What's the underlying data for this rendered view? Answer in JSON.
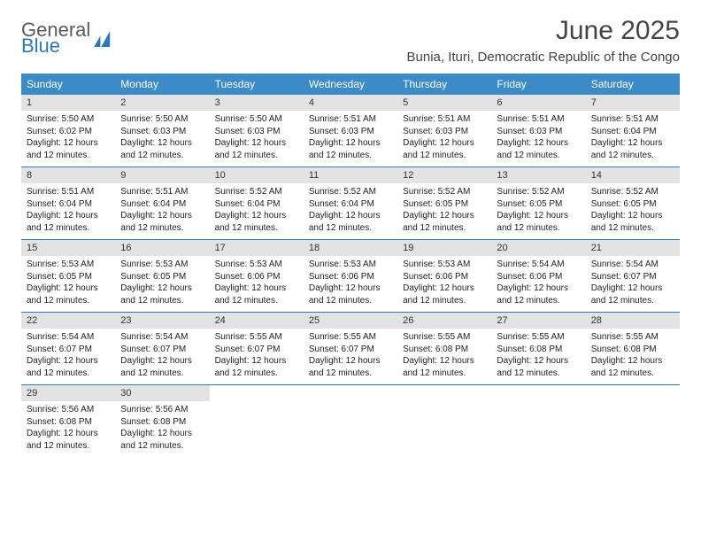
{
  "brand": {
    "line1": "General",
    "line2": "Blue",
    "line1_color": "#5a5a5a",
    "line2_color": "#2f78b7",
    "mark_color": "#2f78b7"
  },
  "header": {
    "title": "June 2025",
    "location": "Bunia, Ituri, Democratic Republic of the Congo",
    "title_fontsize": 30,
    "title_color": "#444444"
  },
  "styling": {
    "header_row_bg": "#3b8bc8",
    "header_row_text": "#ffffff",
    "daynum_bg": "#e3e3e3",
    "week_divider": "#2f78b7",
    "body_text_color": "#222222",
    "body_fontsize": 10,
    "page_bg": "#ffffff"
  },
  "day_labels": [
    "Sunday",
    "Monday",
    "Tuesday",
    "Wednesday",
    "Thursday",
    "Friday",
    "Saturday"
  ],
  "labels": {
    "sunrise": "Sunrise:",
    "sunset": "Sunset:",
    "daylight": "Daylight:"
  },
  "weeks": [
    [
      {
        "n": "1",
        "sr": "5:50 AM",
        "ss": "6:02 PM",
        "dl": "12 hours and 12 minutes."
      },
      {
        "n": "2",
        "sr": "5:50 AM",
        "ss": "6:03 PM",
        "dl": "12 hours and 12 minutes."
      },
      {
        "n": "3",
        "sr": "5:50 AM",
        "ss": "6:03 PM",
        "dl": "12 hours and 12 minutes."
      },
      {
        "n": "4",
        "sr": "5:51 AM",
        "ss": "6:03 PM",
        "dl": "12 hours and 12 minutes."
      },
      {
        "n": "5",
        "sr": "5:51 AM",
        "ss": "6:03 PM",
        "dl": "12 hours and 12 minutes."
      },
      {
        "n": "6",
        "sr": "5:51 AM",
        "ss": "6:03 PM",
        "dl": "12 hours and 12 minutes."
      },
      {
        "n": "7",
        "sr": "5:51 AM",
        "ss": "6:04 PM",
        "dl": "12 hours and 12 minutes."
      }
    ],
    [
      {
        "n": "8",
        "sr": "5:51 AM",
        "ss": "6:04 PM",
        "dl": "12 hours and 12 minutes."
      },
      {
        "n": "9",
        "sr": "5:51 AM",
        "ss": "6:04 PM",
        "dl": "12 hours and 12 minutes."
      },
      {
        "n": "10",
        "sr": "5:52 AM",
        "ss": "6:04 PM",
        "dl": "12 hours and 12 minutes."
      },
      {
        "n": "11",
        "sr": "5:52 AM",
        "ss": "6:04 PM",
        "dl": "12 hours and 12 minutes."
      },
      {
        "n": "12",
        "sr": "5:52 AM",
        "ss": "6:05 PM",
        "dl": "12 hours and 12 minutes."
      },
      {
        "n": "13",
        "sr": "5:52 AM",
        "ss": "6:05 PM",
        "dl": "12 hours and 12 minutes."
      },
      {
        "n": "14",
        "sr": "5:52 AM",
        "ss": "6:05 PM",
        "dl": "12 hours and 12 minutes."
      }
    ],
    [
      {
        "n": "15",
        "sr": "5:53 AM",
        "ss": "6:05 PM",
        "dl": "12 hours and 12 minutes."
      },
      {
        "n": "16",
        "sr": "5:53 AM",
        "ss": "6:05 PM",
        "dl": "12 hours and 12 minutes."
      },
      {
        "n": "17",
        "sr": "5:53 AM",
        "ss": "6:06 PM",
        "dl": "12 hours and 12 minutes."
      },
      {
        "n": "18",
        "sr": "5:53 AM",
        "ss": "6:06 PM",
        "dl": "12 hours and 12 minutes."
      },
      {
        "n": "19",
        "sr": "5:53 AM",
        "ss": "6:06 PM",
        "dl": "12 hours and 12 minutes."
      },
      {
        "n": "20",
        "sr": "5:54 AM",
        "ss": "6:06 PM",
        "dl": "12 hours and 12 minutes."
      },
      {
        "n": "21",
        "sr": "5:54 AM",
        "ss": "6:07 PM",
        "dl": "12 hours and 12 minutes."
      }
    ],
    [
      {
        "n": "22",
        "sr": "5:54 AM",
        "ss": "6:07 PM",
        "dl": "12 hours and 12 minutes."
      },
      {
        "n": "23",
        "sr": "5:54 AM",
        "ss": "6:07 PM",
        "dl": "12 hours and 12 minutes."
      },
      {
        "n": "24",
        "sr": "5:55 AM",
        "ss": "6:07 PM",
        "dl": "12 hours and 12 minutes."
      },
      {
        "n": "25",
        "sr": "5:55 AM",
        "ss": "6:07 PM",
        "dl": "12 hours and 12 minutes."
      },
      {
        "n": "26",
        "sr": "5:55 AM",
        "ss": "6:08 PM",
        "dl": "12 hours and 12 minutes."
      },
      {
        "n": "27",
        "sr": "5:55 AM",
        "ss": "6:08 PM",
        "dl": "12 hours and 12 minutes."
      },
      {
        "n": "28",
        "sr": "5:55 AM",
        "ss": "6:08 PM",
        "dl": "12 hours and 12 minutes."
      }
    ],
    [
      {
        "n": "29",
        "sr": "5:56 AM",
        "ss": "6:08 PM",
        "dl": "12 hours and 12 minutes."
      },
      {
        "n": "30",
        "sr": "5:56 AM",
        "ss": "6:08 PM",
        "dl": "12 hours and 12 minutes."
      },
      null,
      null,
      null,
      null,
      null
    ]
  ]
}
